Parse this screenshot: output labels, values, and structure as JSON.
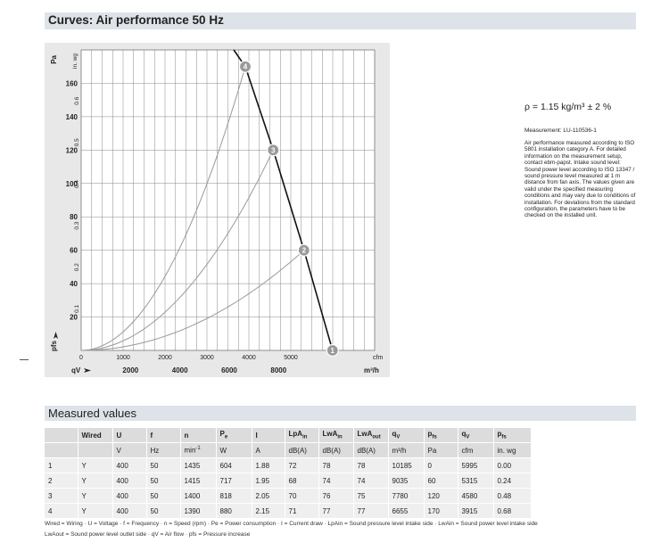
{
  "title": "Curves: Air performance 50 Hz",
  "measured_title": "Measured values",
  "notes": {
    "rho": "ρ = 1.15 kg/m³ ± 2 %",
    "measurement": "Measurement: LU-110536-1",
    "description": "Air performance measured according to ISO\n5801 installation category A. For detailed\ninformation on the measurement setup,\ncontact ebm-papst. Intake sound level:\nSound power level according to ISO 13347 /\nsound pressure level measured at 1 m\ndistance from fan axis. The values given are\nvalid under the specified measuring\nconditions and may vary due to conditions of\ninstallation. For deviations from the standard\nconfiguration, the parameters have to be\nchecked on the installed unit."
  },
  "chart_data": {
    "type": "line",
    "title": "Curves: Air performance 50 Hz",
    "x_top": {
      "unit": "cfm",
      "ticks": [
        0,
        1000,
        2000,
        3000,
        4000,
        5000
      ],
      "range": [
        0,
        7000
      ]
    },
    "x_bottom": {
      "label": "qV",
      "unit": "m³/h",
      "ticks": [
        2000,
        4000,
        6000,
        8000
      ]
    },
    "y_left": {
      "label": "pfs",
      "unit": "Pa",
      "ticks": [
        20,
        40,
        60,
        80,
        100,
        120,
        140,
        160
      ],
      "range": [
        0,
        180
      ]
    },
    "y_right": {
      "unit": "in. wg",
      "ticks": [
        0.1,
        0.2,
        0.3,
        0.4,
        0.5,
        0.6
      ]
    },
    "grid": true,
    "points": [
      {
        "label": "1",
        "qv_cfm": 5995,
        "pfs_pa": 0
      },
      {
        "label": "2",
        "qv_cfm": 5315,
        "pfs_pa": 60
      },
      {
        "label": "3",
        "qv_cfm": 4580,
        "pfs_pa": 120
      },
      {
        "label": "4",
        "qv_cfm": 3915,
        "pfs_pa": 170
      }
    ],
    "fan_curve": [
      [
        3640,
        180
      ],
      [
        3915,
        170
      ],
      [
        4580,
        120
      ],
      [
        5315,
        60
      ],
      [
        5995,
        0
      ]
    ]
  },
  "table": {
    "header1": [
      "",
      "Wired",
      "U",
      "f",
      "n",
      "Pe",
      "I",
      "LpAin",
      "LwAin",
      "LwAout",
      "qV",
      "pfs",
      "qV",
      "pfs"
    ],
    "header2": [
      "",
      "",
      "V",
      "Hz",
      "min-1",
      "W",
      "A",
      "dB(A)",
      "dB(A)",
      "dB(A)",
      "m³/h",
      "Pa",
      "cfm",
      "in. wg"
    ],
    "rows": [
      [
        "1",
        "Y",
        "400",
        "50",
        "1435",
        "604",
        "1.88",
        "72",
        "78",
        "78",
        "10185",
        "0",
        "5995",
        "0.00"
      ],
      [
        "2",
        "Y",
        "400",
        "50",
        "1415",
        "717",
        "1.95",
        "68",
        "74",
        "74",
        "9035",
        "60",
        "5315",
        "0.24"
      ],
      [
        "3",
        "Y",
        "400",
        "50",
        "1400",
        "818",
        "2.05",
        "70",
        "76",
        "75",
        "7780",
        "120",
        "4580",
        "0.48"
      ],
      [
        "4",
        "Y",
        "400",
        "50",
        "1390",
        "880",
        "2.15",
        "71",
        "77",
        "77",
        "6655",
        "170",
        "3915",
        "0.68"
      ]
    ]
  },
  "legend": {
    "line1": "Wired = Wiring · U = Voltage · f = Frequency · n = Speed (rpm) · Pe = Power consumption · I = Current draw · LpAin = Sound pressure level intake side · LwAin = Sound power level intake side",
    "line2": "LwAout = Sound power level outlet side · qV = Air flow · pfs = Pressure increase"
  },
  "colors": {
    "fan_curve": "#111111",
    "system_curves": "#999999",
    "marker": "#9a9a9a",
    "panel": "#e8e8e8",
    "header_bar": "#dde3e8"
  }
}
